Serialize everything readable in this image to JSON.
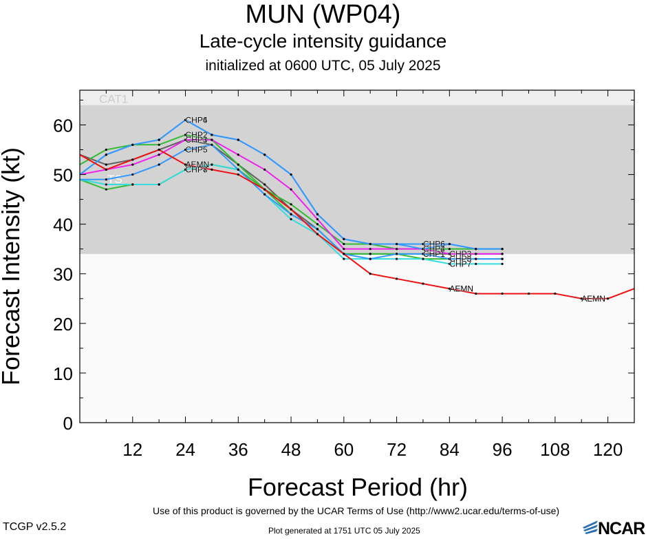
{
  "header": {
    "title": "MUN (WP04)",
    "subtitle": "Late-cycle intensity guidance",
    "init": "initialized at 0600 UTC, 05 July 2025"
  },
  "footer": {
    "terms": "Use of this product is governed by the UCAR Terms of Use (http://www2.ucar.edu/terms-of-use)",
    "version": "TCGP v2.5.2",
    "generated": "Plot generated at 1751 UTC   05 July 2025",
    "logo": "NCAR"
  },
  "chart_data": {
    "type": "line",
    "title": "MUN (WP04)",
    "xlabel": "Forecast Period (hr)",
    "ylabel": "Forecast Intensity (kt)",
    "xlim": [
      0,
      126
    ],
    "ylim": [
      0,
      67
    ],
    "x_ticks": [
      12,
      24,
      36,
      48,
      60,
      72,
      84,
      96,
      108,
      120
    ],
    "y_ticks": [
      0,
      10,
      20,
      30,
      40,
      50,
      60
    ],
    "bands": [
      {
        "label": "TS",
        "from": 34,
        "to": 64,
        "color": "#d3d3d3"
      },
      {
        "label": "CAT1",
        "from": 64,
        "to": 67,
        "color": "#eeeeee"
      }
    ],
    "background_color": "#fafafa",
    "series": [
      {
        "name": "AEMN",
        "color": "#ee1111",
        "x": [
          0,
          6,
          12,
          18,
          24,
          30,
          36,
          42,
          48,
          54,
          60,
          66,
          72,
          78,
          84,
          90,
          96,
          102,
          108,
          114,
          120,
          126
        ],
        "y": [
          54,
          51,
          53,
          55,
          52,
          51,
          50,
          47,
          43,
          38,
          34,
          30,
          29,
          28,
          27,
          26,
          26,
          26,
          26,
          25,
          25,
          27
        ],
        "labels_at": [
          24,
          84,
          114
        ]
      },
      {
        "name": "CHP1",
        "color": "#606060",
        "x": [
          0,
          6,
          12,
          18,
          24,
          30,
          36,
          42,
          48,
          54,
          60,
          66,
          72,
          78,
          84,
          90,
          96
        ],
        "y": [
          54,
          52,
          53,
          55,
          57,
          56,
          52,
          48,
          43,
          39,
          34,
          34,
          34,
          34,
          34,
          34,
          34
        ],
        "labels_at": [
          24,
          78
        ]
      },
      {
        "name": "CHP2",
        "color": "#33bb33",
        "x": [
          0,
          6,
          12,
          18,
          24,
          30,
          36,
          42,
          48,
          54,
          60,
          66,
          72,
          78,
          84,
          90,
          96
        ],
        "y": [
          52,
          55,
          56,
          56,
          58,
          57,
          52,
          47,
          44,
          40,
          36,
          36,
          35,
          35,
          35,
          35,
          35
        ],
        "labels_at": [
          24,
          78
        ]
      },
      {
        "name": "CHP3",
        "color": "#ee22ee",
        "x": [
          0,
          6,
          12,
          18,
          24,
          30,
          36,
          42,
          48,
          54,
          60,
          66,
          72,
          78,
          84,
          90,
          96
        ],
        "y": [
          50,
          51,
          52,
          54,
          57,
          57,
          54,
          51,
          47,
          41,
          35,
          35,
          35,
          35,
          34,
          34,
          34
        ],
        "labels_at": [
          24,
          84
        ]
      },
      {
        "name": "CHP4",
        "color": "#3399ff",
        "x": [
          0,
          6,
          12,
          18,
          24,
          30,
          36,
          42,
          48,
          54,
          60,
          66,
          72,
          78,
          84,
          90,
          96
        ],
        "y": [
          50,
          54,
          56,
          57,
          61,
          58,
          57,
          54,
          50,
          42,
          37,
          36,
          36,
          35,
          36,
          35,
          35
        ],
        "labels_at": [
          24,
          78
        ]
      },
      {
        "name": "CHP5",
        "color": "#3399ff",
        "x": [
          0,
          6,
          12,
          18,
          24,
          30,
          36,
          42,
          48,
          54,
          60,
          66,
          72,
          78,
          84,
          90,
          96
        ],
        "y": [
          49,
          49,
          50,
          52,
          55,
          56,
          51,
          46,
          42,
          39,
          34,
          33,
          34,
          34,
          33,
          33,
          33
        ],
        "labels_at": [
          24,
          84
        ]
      },
      {
        "name": "CHP6",
        "color": "#3399ff",
        "x": [
          0,
          6,
          12,
          18,
          24,
          30,
          36,
          42,
          48,
          54,
          60,
          66,
          72,
          78,
          84,
          90,
          96
        ],
        "y": [
          50,
          54,
          56,
          57,
          61,
          58,
          57,
          54,
          50,
          42,
          37,
          36,
          36,
          36,
          36,
          35,
          35
        ],
        "labels_at": [
          24,
          78
        ]
      },
      {
        "name": "CHP7",
        "color": "#33dddd",
        "x": [
          0,
          6,
          12,
          18,
          24,
          30,
          36,
          42,
          48,
          54,
          60,
          66,
          72,
          78,
          84,
          90,
          96
        ],
        "y": [
          49,
          48,
          48,
          48,
          51,
          52,
          51,
          46,
          41,
          38,
          33,
          33,
          33,
          33,
          32,
          32,
          32
        ],
        "labels_at": [
          24,
          84
        ]
      },
      {
        "name": "CHP8",
        "color": "#33bb33",
        "x": [
          0,
          6,
          12,
          18,
          24,
          30,
          36,
          42,
          48,
          54,
          60,
          66,
          72,
          78,
          84,
          90,
          96
        ],
        "y": [
          49,
          47,
          48,
          48,
          51,
          52,
          51,
          47,
          42,
          39,
          34,
          34,
          34,
          33,
          33,
          33,
          33
        ],
        "labels_at": [
          24,
          84
        ]
      }
    ]
  }
}
